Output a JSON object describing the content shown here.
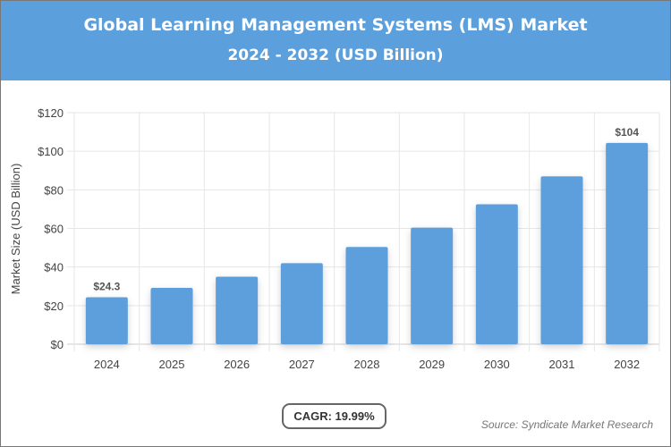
{
  "chart_data": {
    "type": "bar",
    "title": "Global Learning Management Systems (LMS) Market",
    "subtitle": "2024 - 2032 (USD Billion)",
    "xlabel": "",
    "ylabel": "Market Size (USD Billion)",
    "categories": [
      "2024",
      "2025",
      "2026",
      "2027",
      "2028",
      "2029",
      "2030",
      "2031",
      "2032"
    ],
    "values": [
      24.3,
      29.2,
      35.0,
      42.0,
      50.4,
      60.4,
      72.5,
      87.0,
      104.3
    ],
    "data_labels": {
      "0": "$24.3",
      "8": "$104"
    },
    "ylim": [
      0,
      120
    ],
    "yticks": [
      0,
      20,
      40,
      60,
      80,
      100,
      120
    ],
    "ytick_labels": [
      "$0",
      "$20",
      "$40",
      "$60",
      "$80",
      "$100",
      "$120"
    ],
    "grid": true,
    "bar_color": "#5b9fdc",
    "header_color": "#5b9fdc"
  },
  "footer": {
    "cagr": "CAGR: 19.99%",
    "source": "Source: Syndicate Market Research"
  }
}
